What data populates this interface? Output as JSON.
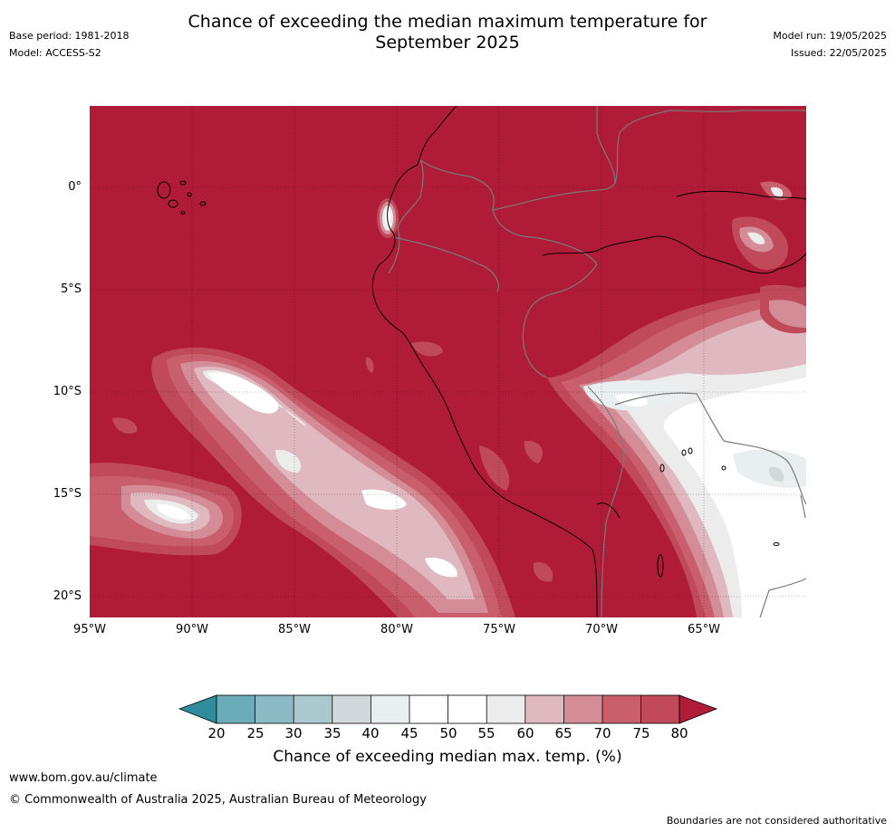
{
  "header": {
    "base_period": "Base period: 1981-2018",
    "model": "Model: ACCESS-S2",
    "title_line1": "Chance of exceeding the median maximum temperature for",
    "title_line2": "September 2025",
    "model_run": "Model run: 19/05/2025",
    "issued": "Issued: 22/05/2025"
  },
  "map": {
    "lat_labels": [
      "0°",
      "5°S",
      "10°S",
      "15°S",
      "20°S"
    ],
    "lon_labels": [
      "95°W",
      "90°W",
      "85°W",
      "80°W",
      "75°W",
      "70°W",
      "65°W"
    ],
    "colors": {
      "c20": "#2f8c9a",
      "c25": "#6aacb8",
      "c30": "#8bbac4",
      "c35": "#a9c9ce",
      "c40": "#d2d9dc",
      "c45": "#e9eef0",
      "c50": "#ffffff",
      "c55": "#ffffff",
      "c60": "#ececec",
      "c65": "#dfb9bf",
      "c70": "#d48d96",
      "c75": "#c95f6d",
      "c80": "#c04a59",
      "c85": "#b01c37",
      "coast": "#000000",
      "border": "#7a7a7a"
    }
  },
  "colorbar": {
    "ticks": [
      "20",
      "25",
      "30",
      "35",
      "40",
      "45",
      "50",
      "55",
      "60",
      "65",
      "70",
      "75",
      "80"
    ],
    "label": "Chance of exceeding median max. temp. (%)"
  },
  "footer": {
    "website": "www.bom.gov.au/climate",
    "copyright": "© Commonwealth of Australia 2025, Australian Bureau of Meteorology",
    "disclaimer": "Boundaries are not considered authoritative"
  }
}
